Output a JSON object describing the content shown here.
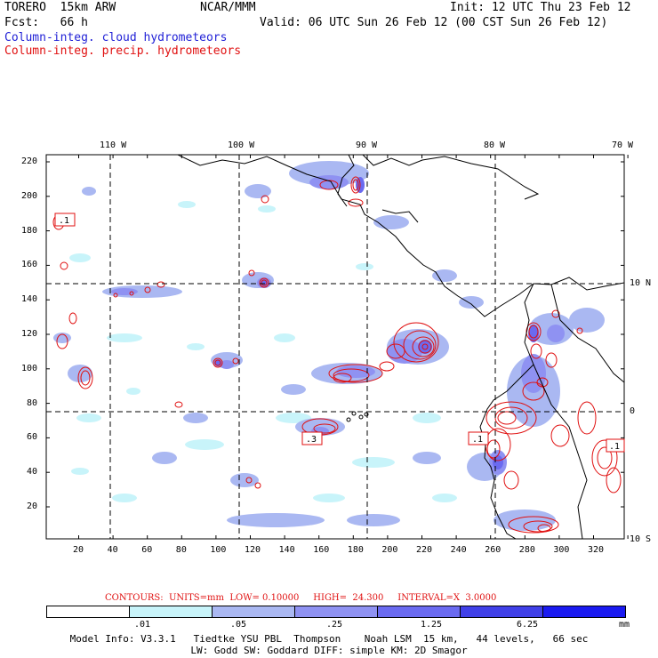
{
  "header": {
    "model": "TORERO  15km ARW",
    "center": "NCAR/MMM",
    "init": "Init: 12 UTC Thu 23 Feb 12",
    "fcst": "Fcst:   66 h",
    "valid": "Valid: 06 UTC Sun 26 Feb 12 (00 CST Sun 26 Feb 12)",
    "field1": "Column-integ. cloud hydrometeors",
    "field2": "Column-integ. precip. hydrometeors"
  },
  "map": {
    "lon_labels": [
      "110 W",
      "100 W",
      "90 W",
      "80 W",
      "70 W"
    ],
    "lat_labels": [
      "10 N",
      "0",
      "10 S"
    ],
    "x_ticks": [
      "20",
      "40",
      "60",
      "80",
      "100",
      "120",
      "140",
      "160",
      "180",
      "200",
      "220",
      "240",
      "260",
      "280",
      "300",
      "320"
    ],
    "y_ticks": [
      "220",
      "200",
      "180",
      "160",
      "140",
      "120",
      "100",
      "80",
      "60",
      "40",
      "20"
    ],
    "box_labels": [
      ".1",
      ".3",
      ".1",
      ".1"
    ]
  },
  "contours": {
    "label": "CONTOURS:  UNITS=mm  LOW= 0.10000     HIGH=  24.300     INTERVAL=X  3.0000"
  },
  "legend": {
    "colors": [
      "#ffffff",
      "#c8f4fa",
      "#aab8f2",
      "#8f92f2",
      "#6a6af0",
      "#4040e8",
      "#1a1af0"
    ],
    "ticks": [
      ".01",
      ".05",
      ".25",
      "1.25",
      "6.25"
    ],
    "unit": "mm"
  },
  "footer": {
    "line1": "Model Info: V3.3.1   Tiedtke YSU PBL  Thompson    Noah LSM  15 km,   44 levels,   66 sec",
    "line2": "LW: Godd SW: Goddard DIFF: simple KM: 2D Smagor"
  }
}
